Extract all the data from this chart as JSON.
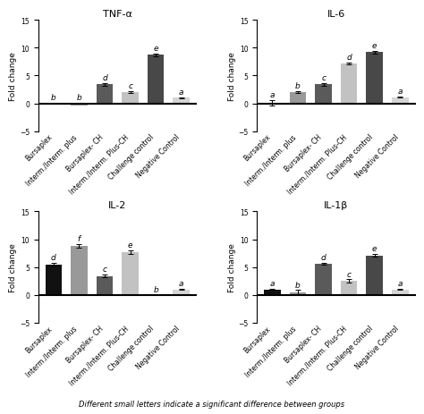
{
  "subplots": [
    {
      "title": "TNF-α",
      "values": [
        -0.25,
        -0.35,
        3.4,
        2.0,
        8.7,
        1.0
      ],
      "errors": [
        0.06,
        0.06,
        0.22,
        0.18,
        0.28,
        0.12
      ],
      "letters": [
        "b",
        "b",
        "d",
        "c",
        "e",
        "a"
      ],
      "colors": [
        "#111111",
        "#999999",
        "#5a5a5a",
        "#c2c2c2",
        "#484848",
        "#d5d5d5"
      ]
    },
    {
      "title": "IL-6",
      "values": [
        0.1,
        2.05,
        3.4,
        7.2,
        9.2,
        1.1
      ],
      "errors": [
        0.45,
        0.15,
        0.28,
        0.18,
        0.22,
        0.12
      ],
      "letters": [
        "a",
        "b",
        "c",
        "d",
        "e",
        "a"
      ],
      "colors": [
        "#111111",
        "#999999",
        "#5a5a5a",
        "#c2c2c2",
        "#484848",
        "#d5d5d5"
      ]
    },
    {
      "title": "IL-2",
      "values": [
        5.5,
        8.8,
        3.4,
        7.7,
        -0.1,
        1.0
      ],
      "errors": [
        0.22,
        0.3,
        0.22,
        0.28,
        0.06,
        0.12
      ],
      "letters": [
        "d",
        "f",
        "c",
        "e",
        "b",
        "a"
      ],
      "colors": [
        "#111111",
        "#999999",
        "#5a5a5a",
        "#c2c2c2",
        "#484848",
        "#d5d5d5"
      ]
    },
    {
      "title": "IL-1β",
      "values": [
        1.0,
        0.5,
        5.6,
        2.5,
        7.1,
        1.0
      ],
      "errors": [
        0.12,
        0.35,
        0.22,
        0.28,
        0.22,
        0.12
      ],
      "letters": [
        "a",
        "b",
        "d",
        "c",
        "e",
        "a"
      ],
      "colors": [
        "#111111",
        "#999999",
        "#5a5a5a",
        "#c2c2c2",
        "#484848",
        "#d5d5d5"
      ]
    }
  ],
  "categories": [
    "Bursaplex",
    "Interm./Interm. plus",
    "Bursaplex- CH",
    "Interm./Interm. Plus-CH",
    "Challenge control",
    "Negative Control"
  ],
  "ylabel": "Fold change",
  "ylim": [
    -5,
    15
  ],
  "yticks": [
    -5,
    0,
    5,
    10,
    15
  ],
  "footnote": "Different small letters indicate a significant difference between groups",
  "bar_width": 0.65,
  "title_fontsize": 8.0,
  "tick_fontsize": 5.5,
  "label_fontsize": 6.5,
  "letter_fontsize": 6.5,
  "footnote_fontsize": 6.0
}
